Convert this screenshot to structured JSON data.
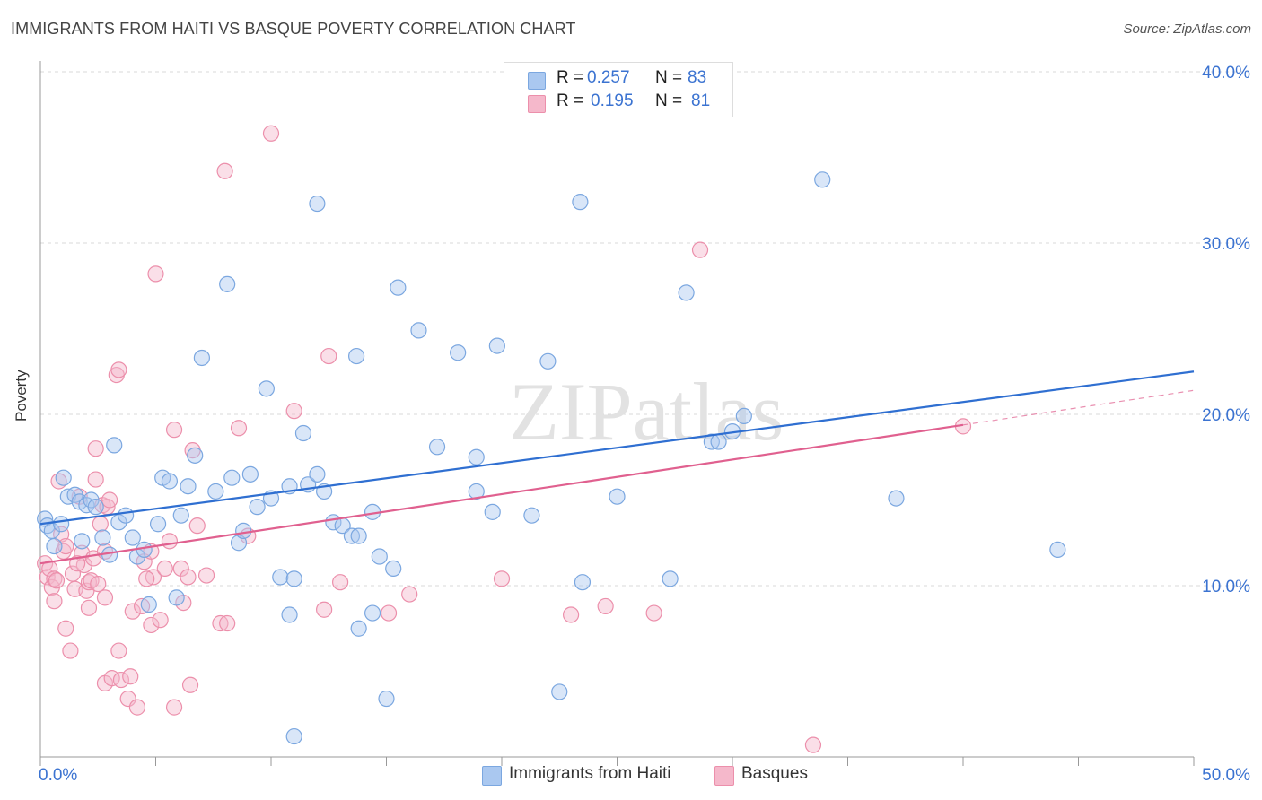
{
  "title": "IMMIGRANTS FROM HAITI VS BASQUE POVERTY CORRELATION CHART",
  "source": "Source: ZipAtlas.com",
  "colors": {
    "blue_fill": "#aac8f0",
    "blue_stroke": "#7ba7e0",
    "blue_line": "#2f6fd1",
    "pink_fill": "#f5b8cb",
    "pink_stroke": "#ec8fab",
    "pink_line": "#e0608f",
    "axis_text": "#3b73d1",
    "grid": "#d8d8d8"
  },
  "legend": {
    "rows": [
      {
        "r_label": "R =",
        "r_value": "0.257",
        "n_label": "N =",
        "n_value": "83"
      },
      {
        "r_label": "R =",
        "r_value": "0.195",
        "n_label": "N =",
        "n_value": "81"
      }
    ]
  },
  "bottom_legend": {
    "haiti": "Immigrants from Haiti",
    "basques": "Basques"
  },
  "chart_data": {
    "type": "scatter",
    "title": "IMMIGRANTS FROM HAITI VS BASQUE POVERTY CORRELATION CHART",
    "xlabel": "",
    "ylabel": "Poverty",
    "xlim": [
      0,
      50
    ],
    "ylim": [
      0,
      40
    ],
    "x_tick_labels": [
      "0.0%",
      "50.0%"
    ],
    "y_tick_labels": [
      "10.0%",
      "20.0%",
      "30.0%",
      "40.0%"
    ],
    "y_ticks": [
      10,
      20,
      30,
      40
    ],
    "watermark": "ZIPatlas",
    "series": [
      {
        "name": "Immigrants from Haiti",
        "color": "blue",
        "R": 0.257,
        "N": 83,
        "trend": {
          "x": [
            0,
            50
          ],
          "y": [
            13.6,
            22.5
          ],
          "dashed_from": null
        },
        "points": [
          [
            0.2,
            13.9
          ],
          [
            0.3,
            13.5
          ],
          [
            0.5,
            13.2
          ],
          [
            0.9,
            13.6
          ],
          [
            1.0,
            16.3
          ],
          [
            1.2,
            15.2
          ],
          [
            1.5,
            15.3
          ],
          [
            1.7,
            14.9
          ],
          [
            1.8,
            12.6
          ],
          [
            2.0,
            14.7
          ],
          [
            2.2,
            15.0
          ],
          [
            2.4,
            14.6
          ],
          [
            2.7,
            12.8
          ],
          [
            3.0,
            11.8
          ],
          [
            3.2,
            18.2
          ],
          [
            3.4,
            13.7
          ],
          [
            3.7,
            14.1
          ],
          [
            4.0,
            12.8
          ],
          [
            4.2,
            11.7
          ],
          [
            4.5,
            12.1
          ],
          [
            4.7,
            8.9
          ],
          [
            5.1,
            13.6
          ],
          [
            5.3,
            16.3
          ],
          [
            5.6,
            16.1
          ],
          [
            5.9,
            9.3
          ],
          [
            6.1,
            14.1
          ],
          [
            6.4,
            15.8
          ],
          [
            6.7,
            17.6
          ],
          [
            7.0,
            23.3
          ],
          [
            7.6,
            15.5
          ],
          [
            8.1,
            27.6
          ],
          [
            8.3,
            16.3
          ],
          [
            8.6,
            12.5
          ],
          [
            8.8,
            13.2
          ],
          [
            9.1,
            16.5
          ],
          [
            9.4,
            14.6
          ],
          [
            9.8,
            21.5
          ],
          [
            10.0,
            15.1
          ],
          [
            10.4,
            10.5
          ],
          [
            10.8,
            15.8
          ],
          [
            11.0,
            10.4
          ],
          [
            11.4,
            18.9
          ],
          [
            11.6,
            15.9
          ],
          [
            12.0,
            16.5
          ],
          [
            12.3,
            15.5
          ],
          [
            12.7,
            13.7
          ],
          [
            13.1,
            13.5
          ],
          [
            13.5,
            12.9
          ],
          [
            13.8,
            12.9
          ],
          [
            14.4,
            14.3
          ],
          [
            14.7,
            11.7
          ],
          [
            15.3,
            11.0
          ],
          [
            10.8,
            8.3
          ],
          [
            13.8,
            7.5
          ],
          [
            14.4,
            8.4
          ],
          [
            15.0,
            3.4
          ],
          [
            11.0,
            1.2
          ],
          [
            12.0,
            32.3
          ],
          [
            13.7,
            23.4
          ],
          [
            15.5,
            27.4
          ],
          [
            16.4,
            24.9
          ],
          [
            17.2,
            18.1
          ],
          [
            18.1,
            23.6
          ],
          [
            18.9,
            15.5
          ],
          [
            18.9,
            17.5
          ],
          [
            19.6,
            14.3
          ],
          [
            19.8,
            24.0
          ],
          [
            21.3,
            14.1
          ],
          [
            22.0,
            23.1
          ],
          [
            22.5,
            3.8
          ],
          [
            23.4,
            32.4
          ],
          [
            23.5,
            10.2
          ],
          [
            25.0,
            15.2
          ],
          [
            27.3,
            10.4
          ],
          [
            28.0,
            27.1
          ],
          [
            29.1,
            18.4
          ],
          [
            29.4,
            18.4
          ],
          [
            30.0,
            19.0
          ],
          [
            30.5,
            19.9
          ],
          [
            33.9,
            33.7
          ],
          [
            37.1,
            15.1
          ],
          [
            44.1,
            12.1
          ],
          [
            0.6,
            12.3
          ]
        ]
      },
      {
        "name": "Basques",
        "color": "pink",
        "R": 0.195,
        "N": 81,
        "trend": {
          "x": [
            0,
            50
          ],
          "y": [
            11.3,
            21.4
          ],
          "dashed_from": 40
        },
        "points": [
          [
            0.2,
            11.3
          ],
          [
            0.3,
            10.5
          ],
          [
            0.4,
            11.0
          ],
          [
            0.5,
            9.9
          ],
          [
            0.6,
            10.4
          ],
          [
            0.6,
            9.1
          ],
          [
            0.8,
            16.1
          ],
          [
            0.9,
            13.0
          ],
          [
            1.0,
            12.0
          ],
          [
            1.1,
            12.3
          ],
          [
            1.1,
            7.5
          ],
          [
            1.3,
            6.2
          ],
          [
            1.4,
            10.7
          ],
          [
            1.5,
            9.8
          ],
          [
            1.7,
            15.2
          ],
          [
            1.8,
            11.9
          ],
          [
            1.9,
            11.2
          ],
          [
            2.0,
            9.7
          ],
          [
            2.1,
            8.7
          ],
          [
            2.1,
            10.2
          ],
          [
            2.2,
            10.3
          ],
          [
            2.3,
            11.6
          ],
          [
            2.4,
            16.2
          ],
          [
            2.4,
            18.0
          ],
          [
            2.6,
            13.6
          ],
          [
            2.7,
            14.7
          ],
          [
            2.8,
            12.0
          ],
          [
            2.8,
            9.3
          ],
          [
            2.8,
            4.3
          ],
          [
            2.9,
            14.6
          ],
          [
            3.0,
            15.0
          ],
          [
            3.1,
            4.6
          ],
          [
            3.3,
            22.3
          ],
          [
            3.4,
            22.6
          ],
          [
            3.4,
            6.2
          ],
          [
            3.5,
            4.5
          ],
          [
            3.8,
            3.4
          ],
          [
            3.9,
            4.7
          ],
          [
            4.0,
            8.5
          ],
          [
            4.2,
            2.9
          ],
          [
            4.4,
            8.8
          ],
          [
            4.5,
            11.4
          ],
          [
            4.8,
            12.0
          ],
          [
            4.8,
            7.7
          ],
          [
            4.9,
            10.5
          ],
          [
            5.0,
            28.2
          ],
          [
            5.2,
            8.0
          ],
          [
            5.4,
            11.0
          ],
          [
            5.6,
            12.6
          ],
          [
            5.8,
            19.1
          ],
          [
            5.8,
            2.9
          ],
          [
            6.1,
            11.0
          ],
          [
            6.2,
            9.0
          ],
          [
            6.4,
            10.5
          ],
          [
            6.5,
            4.2
          ],
          [
            6.6,
            17.9
          ],
          [
            6.8,
            13.5
          ],
          [
            7.2,
            10.6
          ],
          [
            7.8,
            7.8
          ],
          [
            8.0,
            34.2
          ],
          [
            8.1,
            7.8
          ],
          [
            8.6,
            19.2
          ],
          [
            9.0,
            12.9
          ],
          [
            10.0,
            36.4
          ],
          [
            11.0,
            20.2
          ],
          [
            12.3,
            8.6
          ],
          [
            12.5,
            23.4
          ],
          [
            13.0,
            10.2
          ],
          [
            15.1,
            8.4
          ],
          [
            16.0,
            9.5
          ],
          [
            20.0,
            10.4
          ],
          [
            23.0,
            8.3
          ],
          [
            24.5,
            8.8
          ],
          [
            26.6,
            8.4
          ],
          [
            28.6,
            29.6
          ],
          [
            33.5,
            0.7
          ],
          [
            40.0,
            19.3
          ],
          [
            0.7,
            10.3
          ],
          [
            1.6,
            11.3
          ],
          [
            2.5,
            10.1
          ],
          [
            4.6,
            10.4
          ]
        ]
      }
    ]
  }
}
